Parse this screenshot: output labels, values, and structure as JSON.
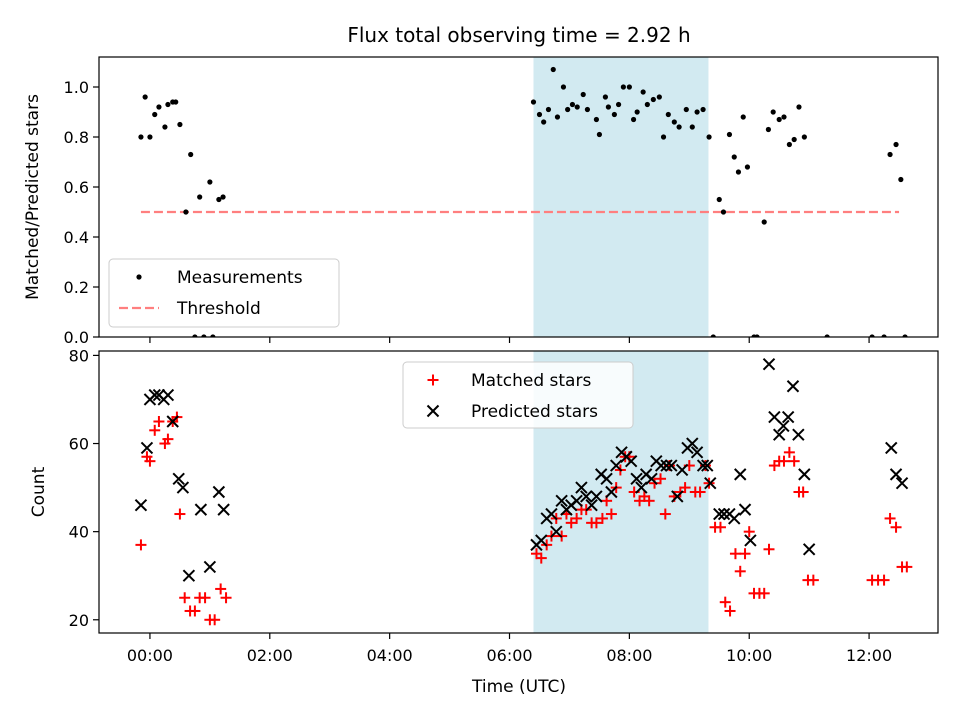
{
  "title": "Flux total observing time = 2.92 h",
  "xlabel": "Time (UTC)",
  "x_ticks": [
    "00:00",
    "02:00",
    "04:00",
    "06:00",
    "08:00",
    "10:00",
    "12:00"
  ],
  "colors": {
    "measurement": "#000000",
    "threshold": "#ff7f7f",
    "matched": "#ff0000",
    "predicted": "#000000",
    "shade": "#add8e6"
  },
  "chart_data": [
    {
      "type": "scatter",
      "ylabel": "Matched/Predicted stars",
      "y_ticks": [
        "0.0",
        "0.2",
        "0.4",
        "0.6",
        "0.8",
        "1.0"
      ],
      "xlim_hours": [
        -0.85,
        13.15
      ],
      "ylim": [
        0.0,
        1.12
      ],
      "shaded_span_hours": [
        6.4,
        9.32
      ],
      "legend": {
        "position": "lower-left",
        "entries": [
          "Measurements",
          "Threshold"
        ]
      },
      "threshold": {
        "name": "Threshold",
        "y": 0.5,
        "x_range_hours": [
          -0.15,
          12.5
        ]
      },
      "series": [
        {
          "name": "Measurements",
          "marker": "dot",
          "points": [
            [
              -0.15,
              0.8
            ],
            [
              -0.08,
              0.96
            ],
            [
              0.0,
              0.8
            ],
            [
              0.08,
              0.89
            ],
            [
              0.15,
              0.92
            ],
            [
              0.25,
              0.84
            ],
            [
              0.3,
              0.93
            ],
            [
              0.38,
              0.94
            ],
            [
              0.43,
              0.94
            ],
            [
              0.5,
              0.85
            ],
            [
              0.6,
              0.5
            ],
            [
              0.68,
              0.73
            ],
            [
              0.83,
              0.56
            ],
            [
              1.0,
              0.62
            ],
            [
              1.15,
              0.55
            ],
            [
              1.22,
              0.56
            ],
            [
              0.75,
              0.0
            ],
            [
              0.9,
              0.0
            ],
            [
              1.05,
              0.0
            ],
            [
              6.4,
              0.94
            ],
            [
              6.5,
              0.89
            ],
            [
              6.57,
              0.86
            ],
            [
              6.65,
              0.91
            ],
            [
              6.73,
              1.07
            ],
            [
              6.8,
              0.88
            ],
            [
              6.9,
              1.0
            ],
            [
              6.97,
              0.91
            ],
            [
              7.05,
              0.93
            ],
            [
              7.13,
              0.92
            ],
            [
              7.23,
              0.97
            ],
            [
              7.3,
              0.91
            ],
            [
              7.45,
              0.87
            ],
            [
              7.5,
              0.81
            ],
            [
              7.6,
              0.96
            ],
            [
              7.65,
              0.92
            ],
            [
              7.75,
              0.89
            ],
            [
              7.82,
              0.93
            ],
            [
              7.9,
              1.0
            ],
            [
              8.0,
              1.0
            ],
            [
              8.07,
              0.87
            ],
            [
              8.13,
              0.9
            ],
            [
              8.23,
              0.98
            ],
            [
              8.3,
              0.93
            ],
            [
              8.4,
              0.95
            ],
            [
              8.5,
              0.96
            ],
            [
              8.57,
              0.8
            ],
            [
              8.65,
              0.89
            ],
            [
              8.75,
              0.86
            ],
            [
              8.83,
              0.84
            ],
            [
              8.95,
              0.91
            ],
            [
              9.05,
              0.84
            ],
            [
              9.13,
              0.9
            ],
            [
              9.23,
              0.91
            ],
            [
              9.33,
              0.8
            ],
            [
              9.4,
              0.0
            ],
            [
              9.5,
              0.55
            ],
            [
              9.57,
              0.5
            ],
            [
              9.67,
              0.81
            ],
            [
              9.75,
              0.72
            ],
            [
              9.82,
              0.66
            ],
            [
              9.9,
              0.88
            ],
            [
              9.97,
              0.68
            ],
            [
              10.08,
              0.0
            ],
            [
              10.13,
              0.0
            ],
            [
              10.25,
              0.46
            ],
            [
              10.32,
              0.83
            ],
            [
              10.4,
              0.9
            ],
            [
              10.5,
              0.87
            ],
            [
              10.58,
              0.88
            ],
            [
              10.67,
              0.77
            ],
            [
              10.75,
              0.79
            ],
            [
              10.83,
              0.92
            ],
            [
              10.92,
              0.8
            ],
            [
              11.3,
              0.0
            ],
            [
              12.05,
              0.0
            ],
            [
              12.25,
              0.0
            ],
            [
              12.35,
              0.73
            ],
            [
              12.45,
              0.77
            ],
            [
              12.53,
              0.63
            ],
            [
              12.6,
              0.0
            ]
          ]
        }
      ]
    },
    {
      "type": "scatter",
      "ylabel": "Count",
      "y_ticks": [
        "20",
        "40",
        "60",
        "80"
      ],
      "xlim_hours": [
        -0.85,
        13.15
      ],
      "ylim": [
        17,
        81
      ],
      "shaded_span_hours": [
        6.4,
        9.32
      ],
      "legend": {
        "position": "upper-center",
        "entries": [
          "Matched stars",
          "Predicted stars"
        ]
      },
      "series": [
        {
          "name": "Matched stars",
          "marker": "plus",
          "points": [
            [
              -0.15,
              37
            ],
            [
              -0.05,
              57
            ],
            [
              0.0,
              56
            ],
            [
              0.08,
              63
            ],
            [
              0.15,
              65
            ],
            [
              0.25,
              60
            ],
            [
              0.3,
              61
            ],
            [
              0.38,
              65
            ],
            [
              0.45,
              66
            ],
            [
              0.5,
              44
            ],
            [
              0.58,
              25
            ],
            [
              0.67,
              22
            ],
            [
              0.75,
              22
            ],
            [
              0.83,
              25
            ],
            [
              0.92,
              25
            ],
            [
              1.0,
              20
            ],
            [
              1.08,
              20
            ],
            [
              1.18,
              27
            ],
            [
              1.27,
              25
            ],
            [
              6.45,
              35
            ],
            [
              6.53,
              34
            ],
            [
              6.62,
              37
            ],
            [
              6.7,
              39
            ],
            [
              6.78,
              43
            ],
            [
              6.87,
              39
            ],
            [
              6.95,
              44
            ],
            [
              7.03,
              42
            ],
            [
              7.12,
              43
            ],
            [
              7.2,
              45
            ],
            [
              7.28,
              45
            ],
            [
              7.37,
              42
            ],
            [
              7.45,
              42
            ],
            [
              7.55,
              43
            ],
            [
              7.62,
              47
            ],
            [
              7.7,
              44
            ],
            [
              7.78,
              50
            ],
            [
              7.85,
              54
            ],
            [
              7.93,
              57
            ],
            [
              8.0,
              57
            ],
            [
              8.08,
              49
            ],
            [
              8.17,
              47
            ],
            [
              8.25,
              48
            ],
            [
              8.33,
              47
            ],
            [
              8.42,
              51
            ],
            [
              8.52,
              52
            ],
            [
              8.6,
              44
            ],
            [
              8.67,
              55
            ],
            [
              8.75,
              48
            ],
            [
              8.85,
              49
            ],
            [
              8.93,
              50
            ],
            [
              9.0,
              55
            ],
            [
              9.1,
              49
            ],
            [
              9.18,
              49
            ],
            [
              9.27,
              55
            ],
            [
              9.33,
              51
            ],
            [
              9.43,
              41
            ],
            [
              9.52,
              41
            ],
            [
              9.6,
              24
            ],
            [
              9.68,
              22
            ],
            [
              9.77,
              35
            ],
            [
              9.85,
              31
            ],
            [
              9.93,
              35
            ],
            [
              10.0,
              40
            ],
            [
              10.08,
              26
            ],
            [
              10.17,
              26
            ],
            [
              10.25,
              26
            ],
            [
              10.33,
              36
            ],
            [
              10.42,
              55
            ],
            [
              10.5,
              56
            ],
            [
              10.58,
              56
            ],
            [
              10.67,
              58
            ],
            [
              10.75,
              56
            ],
            [
              10.83,
              49
            ],
            [
              10.9,
              49
            ],
            [
              10.98,
              29
            ],
            [
              11.07,
              29
            ],
            [
              12.05,
              29
            ],
            [
              12.15,
              29
            ],
            [
              12.25,
              29
            ],
            [
              12.35,
              43
            ],
            [
              12.45,
              41
            ],
            [
              12.55,
              32
            ],
            [
              12.63,
              32
            ]
          ]
        },
        {
          "name": "Predicted stars",
          "marker": "x",
          "points": [
            [
              -0.15,
              46
            ],
            [
              -0.05,
              59
            ],
            [
              0.0,
              70
            ],
            [
              0.08,
              71
            ],
            [
              0.15,
              71
            ],
            [
              0.23,
              70
            ],
            [
              0.3,
              71
            ],
            [
              0.38,
              65
            ],
            [
              0.48,
              52
            ],
            [
              0.55,
              50
            ],
            [
              0.65,
              30
            ],
            [
              0.85,
              45
            ],
            [
              1.0,
              32
            ],
            [
              1.15,
              49
            ],
            [
              1.23,
              45
            ],
            [
              6.45,
              37
            ],
            [
              6.53,
              38
            ],
            [
              6.62,
              43
            ],
            [
              6.7,
              44
            ],
            [
              6.78,
              40
            ],
            [
              6.87,
              47
            ],
            [
              6.95,
              45
            ],
            [
              7.03,
              46
            ],
            [
              7.12,
              47
            ],
            [
              7.2,
              50
            ],
            [
              7.28,
              48
            ],
            [
              7.37,
              46
            ],
            [
              7.45,
              48
            ],
            [
              7.53,
              53
            ],
            [
              7.62,
              52
            ],
            [
              7.7,
              49
            ],
            [
              7.78,
              55
            ],
            [
              7.87,
              58
            ],
            [
              7.95,
              57
            ],
            [
              8.03,
              56
            ],
            [
              8.12,
              52
            ],
            [
              8.2,
              50
            ],
            [
              8.28,
              53
            ],
            [
              8.37,
              52
            ],
            [
              8.45,
              56
            ],
            [
              8.53,
              55
            ],
            [
              8.62,
              55
            ],
            [
              8.7,
              55
            ],
            [
              8.8,
              48
            ],
            [
              8.88,
              54
            ],
            [
              8.97,
              59
            ],
            [
              9.05,
              60
            ],
            [
              9.13,
              58
            ],
            [
              9.23,
              55
            ],
            [
              9.3,
              55
            ],
            [
              9.35,
              51
            ],
            [
              9.5,
              44
            ],
            [
              9.58,
              44
            ],
            [
              9.67,
              44
            ],
            [
              9.75,
              43
            ],
            [
              9.85,
              53
            ],
            [
              9.93,
              45
            ],
            [
              10.02,
              38
            ],
            [
              10.33,
              78
            ],
            [
              10.42,
              66
            ],
            [
              10.5,
              62
            ],
            [
              10.57,
              64
            ],
            [
              10.65,
              66
            ],
            [
              10.73,
              73
            ],
            [
              10.82,
              62
            ],
            [
              10.92,
              53
            ],
            [
              11.0,
              36
            ],
            [
              12.37,
              59
            ],
            [
              12.45,
              53
            ],
            [
              12.55,
              51
            ]
          ]
        }
      ]
    }
  ]
}
